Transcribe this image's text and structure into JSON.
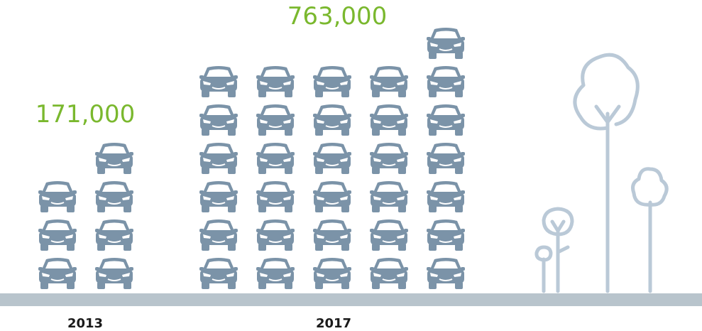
{
  "groups": [
    {
      "value": "171,000",
      "year": "2013"
    },
    {
      "value": "763,000",
      "year": "2017"
    }
  ]
}
